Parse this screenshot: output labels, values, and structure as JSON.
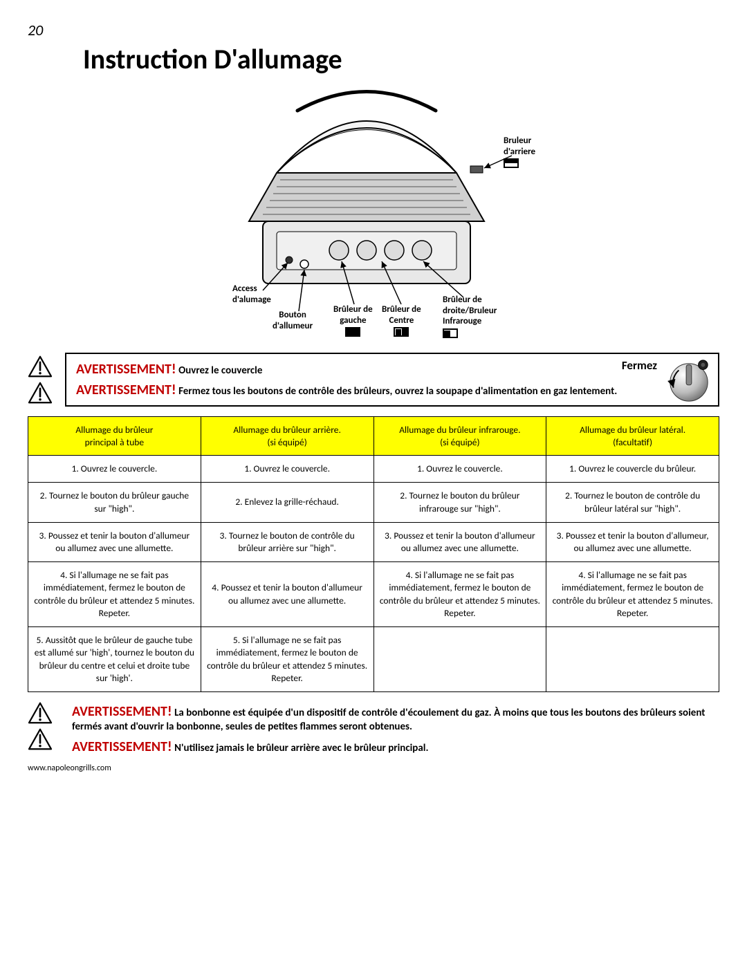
{
  "page_number": "20",
  "title": "Instruction D'allumage",
  "diagram_labels": {
    "rear_burner": "Bruleur\nd'arriere",
    "access": "Access\nd'alumage",
    "igniter_btn": "Bouton\nd'allumeur",
    "left_burner": "Brûleur de\ngauche",
    "center_burner": "Brûleur de\nCentre",
    "right_burner": "Brûleur de\ndroite/Bruleur\nInfrarouge"
  },
  "warning1": {
    "label": "AVERTISSEMENT!",
    "line1_rest": " Ouvrez le couvercle",
    "fermez": "Fermez",
    "line2_rest": " Fermez tous les boutons de contrôle des brûleurs, ouvrez la soupape d'alimentation en gaz lentement."
  },
  "table": {
    "headers": [
      "Allumage du brûleur\nprincipal à tube",
      "Allumage du brûleur arrière.\n(si équipé)",
      "Allumage du brûleur infrarouge.\n(si équipé)",
      "Allumage du brûleur latéral.\n(facultatif)"
    ],
    "rows": [
      [
        "1. Ouvrez le couvercle.",
        "1. Ouvrez le couvercle.",
        "1. Ouvrez le couvercle.",
        "1. Ouvrez le couvercle du brûleur."
      ],
      [
        "2. Tournez le bouton du brûleur gauche sur \"high\".",
        "2. Enlevez la grille-réchaud.",
        "2. Tournez le bouton du brûleur infrarouge sur \"high\".",
        "2. Tournez le bouton de contrôle du brûleur latéral sur \"high\"."
      ],
      [
        "3. Poussez et tenir la bouton d'allumeur ou allumez avec une allumette.",
        "3. Tournez le bouton de contrôle du brûleur arrière sur \"high\".",
        "3. Poussez et tenir la bouton d'allumeur ou allumez avec une allumette.",
        "3. Poussez et tenir la bouton d'allumeur, ou allumez avec une allumette."
      ],
      [
        "4. Si l'allumage ne se fait pas immédiatement, fermez le bouton de contrôle du brûleur et attendez 5 minutes.\nRepeter.",
        "4. Poussez et tenir la bouton d'allumeur ou allumez avec une allumette.",
        "4. Si l'allumage ne se fait pas immédiatement, fermez le bouton de contrôle du brûleur et attendez 5 minutes.\nRepeter.",
        "4. Si l'allumage ne se fait pas immédiatement, fermez le bouton de contrôle du brûleur et attendez 5 minutes.\nRepeter."
      ],
      [
        "5. Aussitôt que le brûleur de gauche tube est allumé sur 'high', tournez le bouton du brûleur du centre et celui et droite tube sur 'high'.",
        "5. Si l'allumage ne se fait pas immédiatement, fermez le bouton de contrôle du brûleur et attendez 5 minutes.\nRepeter.",
        "",
        ""
      ]
    ]
  },
  "warning2": {
    "label": "AVERTISSEMENT!",
    "line1_rest": " La bonbonne est équipée d'un dispositif de contrôle d'écoulement du gaz. À moins que tous les boutons des brûleurs soient fermés avant d'ouvrir la bonbonne, seules de petites flammes seront obtenues.",
    "line2_rest": " N'utilisez jamais le brûleur arrière avec le brûleur principal."
  },
  "footer_url": "www.napoleongrills.com",
  "colors": {
    "warning_red": "#c00000",
    "header_yellow": "#ffff00"
  }
}
